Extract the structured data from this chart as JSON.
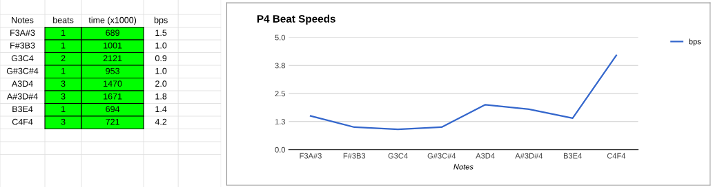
{
  "chart_data": [
    {
      "type": "other",
      "color": "#00ff00",
      "annotations": [
        "Notes",
        "beats",
        "time (x1000)",
        "bps",
        "F3A#3",
        "1",
        "689",
        "1.5",
        "F#3B3",
        "1",
        "1001",
        "1.0",
        "G3C4",
        "2",
        "2121",
        "0.9",
        "G#3C#4",
        "1",
        "953",
        "1.0",
        "A3D4",
        "3",
        "1470",
        "2.0",
        "A#3D#4",
        "3",
        "1671",
        "1.8",
        "B3E4",
        "1",
        "694",
        "1.4",
        "C4F4",
        "3",
        "721",
        "4.2"
      ]
    },
    {
      "type": "line",
      "title": "P4 Beat Speeds",
      "xlabel": "Notes",
      "categories": [
        "F3A#3",
        "F#3B3",
        "G3C4",
        "G#3C#4",
        "A3D4",
        "A#3D#4",
        "B3E4",
        "C4F4"
      ],
      "series": [
        {
          "name": "bps",
          "color": "#3366cc",
          "values": [
            1.5,
            1.0,
            0.9,
            1.0,
            2.0,
            1.8,
            1.4,
            4.2
          ]
        }
      ],
      "ylim": [
        0,
        5
      ],
      "yticks": [
        {
          "value": 0,
          "label": "0.0"
        },
        {
          "value": 1.25,
          "label": "1.3"
        },
        {
          "value": 2.5,
          "label": "2.5"
        },
        {
          "value": 3.75,
          "label": "3.8"
        },
        {
          "value": 5,
          "label": "5.0"
        }
      ],
      "grid": "y",
      "legend": "top right",
      "marker": "none",
      "line_style": "solid"
    }
  ]
}
